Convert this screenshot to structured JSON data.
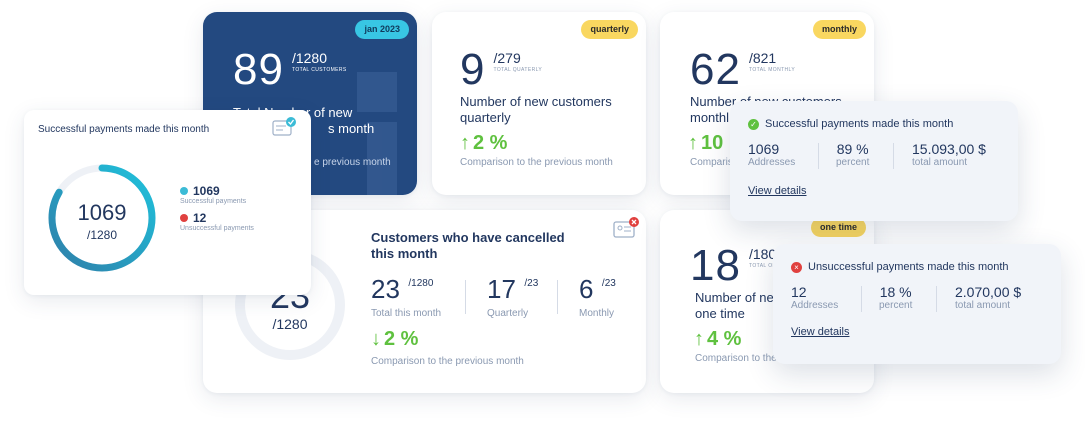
{
  "total_card": {
    "badge": "jan 2023",
    "value": "89",
    "fraction": "/1280",
    "caption": "TOTAL CUSTOMERS",
    "title_line1": "Total Number of new",
    "title_line2": "s month",
    "comparison": "e previous month"
  },
  "quarterly_card": {
    "badge": "quarterly",
    "value": "9",
    "fraction": "/279",
    "caption": "TOTAL QUATERLY",
    "title": "Number of new customers quarterly",
    "percent": "2 %",
    "comparison": "Comparison to the previous month"
  },
  "monthly_card": {
    "badge": "monthly",
    "value": "62",
    "fraction": "/821",
    "caption": "TOTAL MONTHLY",
    "title": "Number of new customers",
    "title_line2": "monthl",
    "percent": "10",
    "comparison": "Comparis"
  },
  "payments_card": {
    "title": "Successful payments made this month",
    "ring_value": "1069",
    "ring_total": "/1280",
    "ring_progress": 0.835,
    "success_value": "1069",
    "success_label": "Successful payments",
    "fail_value": "12",
    "fail_label": "Unsuccessful payments"
  },
  "cancelled_card": {
    "title": "Customers who have cancelled this month",
    "ring_value": "23",
    "ring_total": "/1280",
    "total_value": "23",
    "total_fraction": "/1280",
    "total_label": "Total this month",
    "quarterly_value": "17",
    "quarterly_fraction": "/23",
    "quarterly_label": "Quarterly",
    "monthly_value": "6",
    "monthly_fraction": "/23",
    "monthly_label": "Monthly",
    "percent": "2 %",
    "comparison": "Comparison to the previous month"
  },
  "onetime_card": {
    "badge": "one time",
    "value": "18",
    "fraction": "/180",
    "caption": "TOTAL ON",
    "title_line1": "Number of ne",
    "title_line2": "one time",
    "percent": "4 %",
    "comparison": "Comparison to the"
  },
  "success_popup": {
    "title": "Successful payments made this month",
    "addresses_value": "1069",
    "addresses_label": "Addresses",
    "percent_value": "89 %",
    "percent_label": "percent",
    "amount_value": "15.093,00 $",
    "amount_label": "total amount",
    "link": "View details"
  },
  "fail_popup": {
    "title": "Unsuccessful payments made this month",
    "addresses_value": "12",
    "addresses_label": "Addresses",
    "percent_value": "18 %",
    "percent_label": "percent",
    "amount_value": "2.070,00 $",
    "amount_label": "total amount",
    "link": "View details"
  },
  "colors": {
    "navy": "#22375f",
    "dark_card": "#234980",
    "green": "#5fc13f",
    "red": "#e0413f",
    "teal": "#3bbbd6",
    "badge_yellow": "#f9d760",
    "badge_cyan": "#38c6e4"
  }
}
